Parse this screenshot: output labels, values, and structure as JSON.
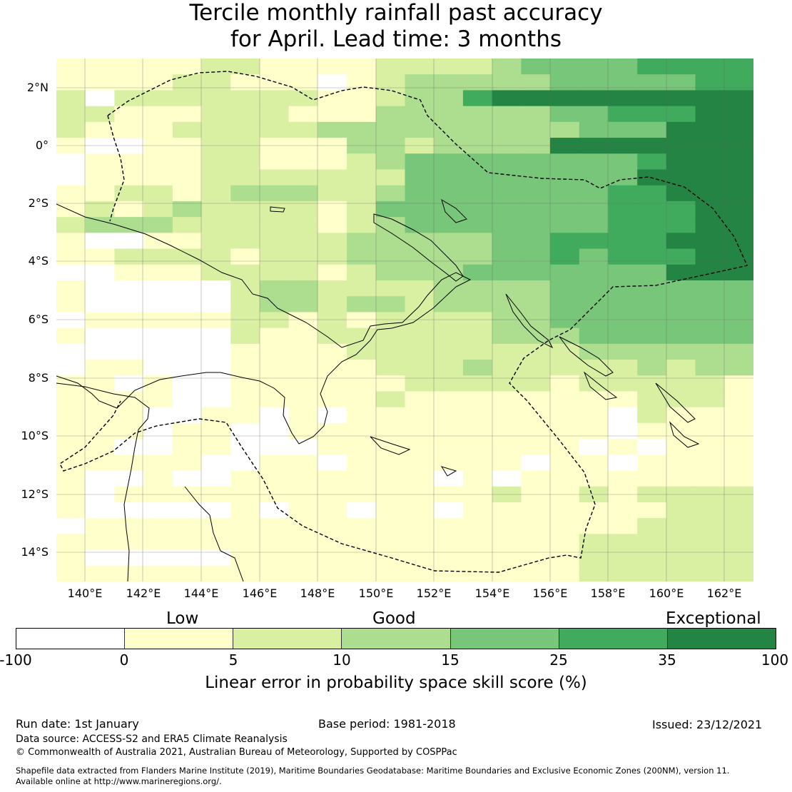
{
  "title": {
    "line1": "Tercile monthly rainfall past accuracy",
    "line2": "for April. Lead time: 3 months"
  },
  "map": {
    "lat_labels": [
      "2°N",
      "0°",
      "2°S",
      "4°S",
      "6°S",
      "8°S",
      "10°S",
      "12°S",
      "14°S"
    ],
    "lon_labels": [
      "140°E",
      "142°E",
      "144°E",
      "146°E",
      "148°E",
      "150°E",
      "152°E",
      "154°E",
      "156°E",
      "158°E",
      "160°E",
      "162°E"
    ],
    "palette": {
      "neg": "#ffffff",
      "c0": "#ffffcc",
      "c5": "#d9f0a3",
      "c10": "#addd8e",
      "c15": "#78c679",
      "c25": "#41ab5d",
      "c35": "#238443"
    },
    "grid_rows": [
      "111112211112222344445555",
      "111122111012333334444455",
      "202222222112335666666666",
      "221112221113333334455566",
      "211122222333333333444666",
      "100112211133233336666666",
      "011112211123444444445666",
      "011112222222444444446666",
      "112212333223444444455666",
      "121232222124444444455566",
      "233322222123444444455566",
      "100112222233333445555666",
      "112222122233333445455566",
      "001112222123334444444666",
      "100000233222233334444444",
      "100000233233233334444444",
      "011111221212222334444444",
      "100000211222222333444444",
      "000000111122222222333333",
      "011000111112223222223233",
      "110100111111222221222221",
      "111100111112111111112221",
      "111001101011111111102111",
      "111011001111111111101111",
      "110011000111111111010111",
      "111110011011111101101111",
      "100100111111101011111111",
      "101111111111111211212222",
      "100000101101101111111222",
      "011111111111111111112222",
      "111111111111111111222222",
      "100000111111111111222222",
      "111111111111111111222222"
    ]
  },
  "colorbar": {
    "category_low": "Low",
    "category_good": "Good",
    "category_exceptional": "Exceptional",
    "ticks": [
      "-100",
      "0",
      "5",
      "10",
      "15",
      "25",
      "35",
      "100"
    ],
    "segment_colors": [
      "#ffffff",
      "#ffffcc",
      "#d9f0a3",
      "#addd8e",
      "#78c679",
      "#41ab5d",
      "#238443"
    ],
    "label": "Linear error in probability space skill score (%)"
  },
  "footer": {
    "run_date": "Run date: 1st January",
    "base_period": "Base period: 1981-2018",
    "issued": "Issued: 23/12/2021",
    "data_source": "Data source: ACCESS-S2 and ERA5 Climate Reanalysis",
    "copyright": "© Commonwealth of Australia 2021, Australian Bureau of Meteorology, Supported by COSPPac",
    "shapefile_line1": "Shapefile data extracted from Flanders Marine Institute (2019), Maritime Boundaries Geodatabase: Maritime Boundaries and Exclusive Economic Zones (200NM), version 11.",
    "shapefile_line2": "Available online at http://www.marineregions.org/."
  }
}
